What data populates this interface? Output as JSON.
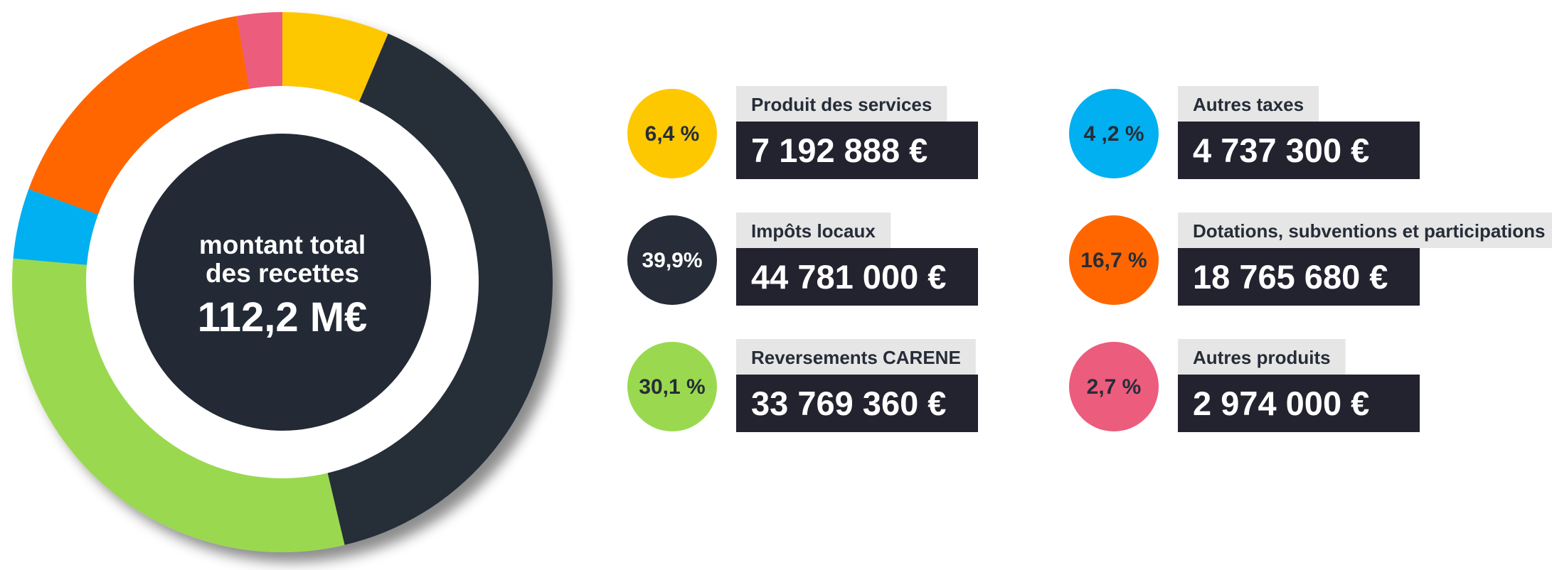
{
  "chart_data": {
    "type": "donut",
    "center_text": [
      "montant total",
      "des recettes"
    ],
    "total": {
      "value": 112.2,
      "label": "112,2 M€"
    },
    "categories": [
      "Produit des services",
      "Impôts locaux",
      "Reversements CARENE",
      "Autres taxes",
      "Dotations, subventions et participations",
      "Autres produits"
    ],
    "values": [
      6.4,
      39.9,
      30.1,
      4.2,
      16.7,
      2.7
    ],
    "value_labels": [
      "6,4 %",
      "39,9%",
      "30,1 %",
      "4 ,2 %",
      "16,7 %",
      "2,7 %"
    ],
    "colors": [
      "#fec800",
      "#262d38",
      "#9ad94f",
      "#00b0f0",
      "#ff6600",
      "#ec5c7c"
    ],
    "amounts": [
      7192888,
      44781000,
      33769360,
      4737300,
      18765680,
      2974000
    ],
    "amount_labels": [
      "7 192 888 €",
      "44 781 000 €",
      "33 769 360 €",
      "4 737 300 €",
      "18 765 680 €",
      "2 974 000 €"
    ]
  }
}
